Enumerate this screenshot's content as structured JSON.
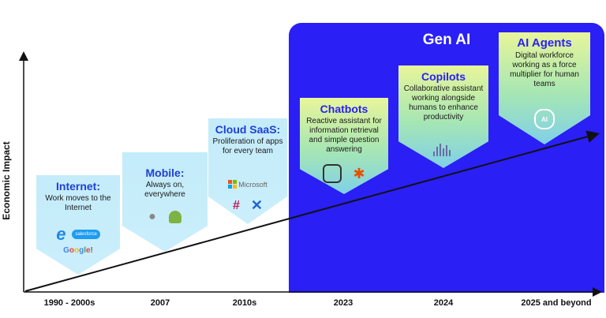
{
  "gen_ai_label": "Gen AI",
  "y_axis_label": "Economic Impact",
  "timeline": [
    "1990 - 2000s",
    "2007",
    "2010s",
    "2023",
    "2024",
    "2025 and beyond"
  ],
  "cards": [
    {
      "title": "Internet:",
      "description": "Work moves to the Internet",
      "icons": [
        "internet-explorer-icon",
        "salesforce-icon",
        "google-icon"
      ],
      "google_text": "Google!",
      "salesforce_text": "salesforce"
    },
    {
      "title": "Mobile:",
      "description": "Always on, everywhere",
      "icons": [
        "apple-icon",
        "android-icon"
      ]
    },
    {
      "title": "Cloud SaaS:",
      "description": "Proliferation of apps for every team",
      "icons": [
        "microsoft-icon",
        "slack-icon",
        "confluence-icon"
      ],
      "microsoft_text": "Microsoft"
    },
    {
      "title": "Chatbots",
      "description": "Reactive assistant for information retrieval and simple question answering",
      "icons": [
        "chatgpt-icon",
        "pinwheel-icon"
      ]
    },
    {
      "title": "Copilots",
      "description": "Collaborative assistant working alongside humans to enhance productivity",
      "icons": [
        "copilot-icon"
      ]
    },
    {
      "title": "AI Agents",
      "description": "Digital workforce working as a force multiplier for human teams",
      "icons": [
        "ai-brain-icon"
      ],
      "brain_text": "AI"
    }
  ],
  "colors": {
    "genai_panel": "#2a1ff5",
    "card_light": "#c4ecfa",
    "title_blue": "#1f3fd6"
  }
}
